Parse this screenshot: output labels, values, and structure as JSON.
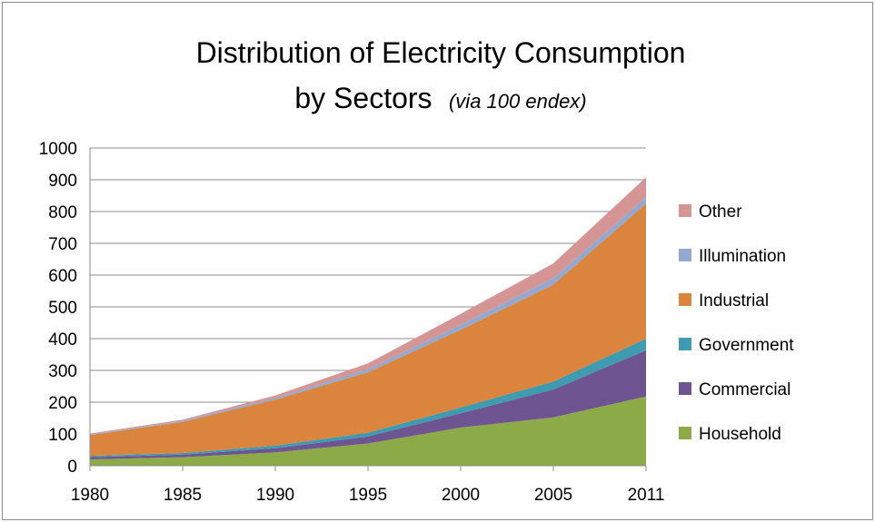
{
  "chart_data": {
    "type": "area",
    "stacked": true,
    "title_line1": "Distribution of Electricity Consumption",
    "title_line2": "by Sectors",
    "title_note": "(via 100 endex)",
    "xlabel": "",
    "ylabel": "",
    "categories": [
      "1980",
      "1985",
      "1990",
      "1995",
      "2000",
      "2005",
      "2011"
    ],
    "ylim": [
      0,
      1000
    ],
    "yticks": [
      0,
      100,
      200,
      300,
      400,
      500,
      600,
      700,
      800,
      900,
      1000
    ],
    "grid": true,
    "legend_position": "right",
    "series": [
      {
        "name": "Household",
        "color": "#8caa48",
        "values": [
          20,
          27,
          42,
          70,
          120,
          152,
          218
        ]
      },
      {
        "name": "Commercial",
        "color": "#6e5490",
        "values": [
          7,
          8,
          13,
          22,
          45,
          88,
          145
        ]
      },
      {
        "name": "Government",
        "color": "#3e9bb0",
        "values": [
          4,
          5,
          8,
          12,
          18,
          25,
          37
        ]
      },
      {
        "name": "Industrial",
        "color": "#db843d",
        "values": [
          65,
          98,
          145,
          190,
          245,
          305,
          425
        ]
      },
      {
        "name": "Illumination",
        "color": "#93a9cf",
        "values": [
          2,
          3,
          5,
          10,
          15,
          20,
          20
        ]
      },
      {
        "name": "Other",
        "color": "#d59595",
        "values": [
          3,
          4,
          8,
          18,
          35,
          47,
          63
        ]
      }
    ]
  }
}
